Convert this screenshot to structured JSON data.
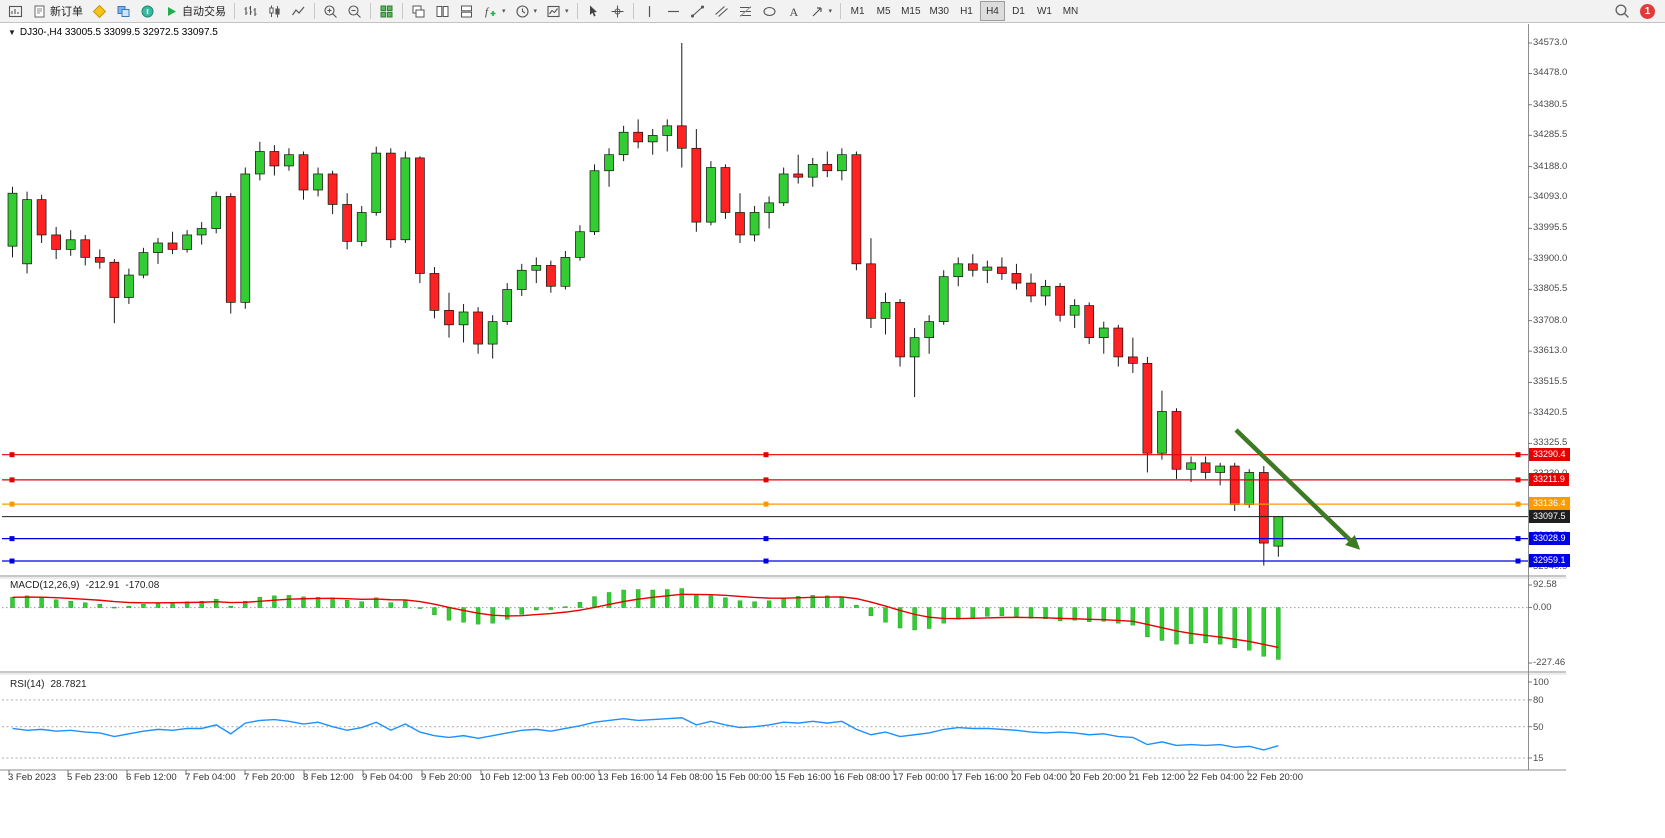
{
  "icons": {
    "dropdown_caret": "▾",
    "collapse_arrow": "▼"
  },
  "toolbar": {
    "new_order_label": "新订单",
    "autotrading_label": "自动交易",
    "timeframes": [
      "M1",
      "M5",
      "M15",
      "M30",
      "H1",
      "H4",
      "D1",
      "W1",
      "MN"
    ],
    "active_timeframe": "H4",
    "notification_count": "1"
  },
  "chart": {
    "title_line": "DJ30-,H4 33005.5 33099.5 32972.5 33097.5",
    "price_axis_labels": [
      "34573.0",
      "34478.0",
      "34380.5",
      "34285.5",
      "34188.0",
      "34093.0",
      "33995.5",
      "33900.0",
      "33805.5",
      "33708.0",
      "33613.0",
      "33515.5",
      "33420.5",
      "33325.5",
      "33230.0",
      "33132.5",
      "33037.0",
      "32940.5"
    ],
    "time_axis_labels": [
      "3 Feb 2023",
      "5 Feb 23:00",
      "6 Feb 12:00",
      "7 Feb 04:00",
      "7 Feb 20:00",
      "8 Feb 12:00",
      "9 Feb 04:00",
      "9 Feb 20:00",
      "10 Feb 12:00",
      "13 Feb 00:00",
      "13 Feb 16:00",
      "14 Feb 08:00",
      "15 Feb 00:00",
      "15 Feb 16:00",
      "16 Feb 08:00",
      "17 Feb 00:00",
      "17 Feb 16:00",
      "20 Feb 04:00",
      "20 Feb 20:00",
      "21 Feb 12:00",
      "22 Feb 04:00",
      "22 Feb 20:00"
    ]
  },
  "chart_data": {
    "type": "candlestick",
    "symbol": "DJ30-",
    "timeframe": "H4",
    "current_bar": {
      "open": 33005.5,
      "high": 33099.5,
      "low": 32972.5,
      "close": 33097.5
    },
    "y_range": [
      32940.5,
      34573.0
    ],
    "colors": {
      "up": "#33cc33",
      "down": "#ff2222",
      "wick": "#1a1a1a"
    },
    "candles": [
      [
        33940,
        34125,
        33905,
        34105
      ],
      [
        33885,
        34110,
        33855,
        34085
      ],
      [
        34085,
        34100,
        33950,
        33975
      ],
      [
        33975,
        34000,
        33900,
        33930
      ],
      [
        33930,
        33990,
        33910,
        33960
      ],
      [
        33960,
        33975,
        33880,
        33905
      ],
      [
        33905,
        33930,
        33870,
        33890
      ],
      [
        33890,
        33900,
        33700,
        33780
      ],
      [
        33780,
        33870,
        33760,
        33850
      ],
      [
        33850,
        33935,
        33840,
        33920
      ],
      [
        33920,
        33965,
        33885,
        33950
      ],
      [
        33950,
        33985,
        33915,
        33930
      ],
      [
        33930,
        33990,
        33920,
        33975
      ],
      [
        33975,
        34015,
        33945,
        33995
      ],
      [
        33995,
        34110,
        33980,
        34095
      ],
      [
        34095,
        34105,
        33730,
        33765
      ],
      [
        33765,
        34185,
        33745,
        34165
      ],
      [
        34165,
        34265,
        34145,
        34235
      ],
      [
        34235,
        34255,
        34160,
        34190
      ],
      [
        34190,
        34245,
        34175,
        34225
      ],
      [
        34225,
        34235,
        34085,
        34115
      ],
      [
        34115,
        34185,
        34095,
        34165
      ],
      [
        34165,
        34175,
        34040,
        34070
      ],
      [
        34070,
        34105,
        33930,
        33955
      ],
      [
        33955,
        34065,
        33940,
        34045
      ],
      [
        34045,
        34250,
        34035,
        34230
      ],
      [
        34230,
        34245,
        33935,
        33960
      ],
      [
        33960,
        34235,
        33950,
        34215
      ],
      [
        34215,
        34220,
        33825,
        33855
      ],
      [
        33855,
        33875,
        33715,
        33740
      ],
      [
        33740,
        33795,
        33655,
        33695
      ],
      [
        33695,
        33760,
        33640,
        33735
      ],
      [
        33735,
        33750,
        33605,
        33635
      ],
      [
        33635,
        33725,
        33590,
        33705
      ],
      [
        33705,
        33825,
        33695,
        33805
      ],
      [
        33805,
        33885,
        33785,
        33865
      ],
      [
        33865,
        33905,
        33825,
        33880
      ],
      [
        33880,
        33895,
        33795,
        33815
      ],
      [
        33815,
        33925,
        33805,
        33905
      ],
      [
        33905,
        34005,
        33895,
        33985
      ],
      [
        33985,
        34195,
        33975,
        34175
      ],
      [
        34175,
        34245,
        34125,
        34225
      ],
      [
        34225,
        34315,
        34205,
        34295
      ],
      [
        34295,
        34335,
        34245,
        34265
      ],
      [
        34265,
        34305,
        34225,
        34285
      ],
      [
        34285,
        34335,
        34235,
        34315
      ],
      [
        34315,
        34573,
        34185,
        34245
      ],
      [
        34245,
        34305,
        33985,
        34015
      ],
      [
        34015,
        34205,
        34005,
        34185
      ],
      [
        34185,
        34195,
        34025,
        34045
      ],
      [
        34045,
        34105,
        33950,
        33975
      ],
      [
        33975,
        34065,
        33955,
        34045
      ],
      [
        34045,
        34095,
        33995,
        34075
      ],
      [
        34075,
        34185,
        34065,
        34165
      ],
      [
        34165,
        34225,
        34135,
        34155
      ],
      [
        34155,
        34215,
        34125,
        34195
      ],
      [
        34195,
        34235,
        34155,
        34175
      ],
      [
        34175,
        34245,
        34145,
        34225
      ],
      [
        34225,
        34235,
        33865,
        33885
      ],
      [
        33885,
        33965,
        33685,
        33715
      ],
      [
        33715,
        33795,
        33665,
        33765
      ],
      [
        33765,
        33775,
        33565,
        33595
      ],
      [
        33595,
        33685,
        33470,
        33655
      ],
      [
        33655,
        33725,
        33605,
        33705
      ],
      [
        33705,
        33865,
        33695,
        33845
      ],
      [
        33845,
        33905,
        33815,
        33885
      ],
      [
        33885,
        33915,
        33845,
        33865
      ],
      [
        33865,
        33895,
        33825,
        33875
      ],
      [
        33875,
        33905,
        33835,
        33855
      ],
      [
        33855,
        33885,
        33805,
        33825
      ],
      [
        33825,
        33855,
        33765,
        33785
      ],
      [
        33785,
        33835,
        33755,
        33815
      ],
      [
        33815,
        33825,
        33705,
        33725
      ],
      [
        33725,
        33775,
        33685,
        33755
      ],
      [
        33755,
        33765,
        33635,
        33655
      ],
      [
        33655,
        33705,
        33605,
        33685
      ],
      [
        33685,
        33695,
        33565,
        33595
      ],
      [
        33595,
        33655,
        33545,
        33575
      ],
      [
        33575,
        33595,
        33235,
        33295
      ],
      [
        33295,
        33490,
        33275,
        33425
      ],
      [
        33425,
        33435,
        33215,
        33245
      ],
      [
        33245,
        33285,
        33205,
        33265
      ],
      [
        33265,
        33285,
        33215,
        33235
      ],
      [
        33235,
        33265,
        33195,
        33255
      ],
      [
        33255,
        33265,
        33115,
        33135
      ],
      [
        33135,
        33245,
        33125,
        33235
      ],
      [
        33235,
        33255,
        32945,
        33015
      ],
      [
        33005.5,
        33099.5,
        32972.5,
        33097.5
      ]
    ],
    "levels": [
      {
        "price": 33290.4,
        "label": "33290.4",
        "color": "#e60000",
        "kind": "hline"
      },
      {
        "price": 33211.9,
        "label": "33211.9",
        "color": "#e60000",
        "kind": "hline"
      },
      {
        "price": 33136.4,
        "label": "33136.4",
        "color": "#ff9900",
        "kind": "hline"
      },
      {
        "price": 33097.5,
        "label": "33097.5",
        "color": "#1f1f1f",
        "kind": "current-price"
      },
      {
        "price": 33028.9,
        "label": "33028.9",
        "color": "#0000e6",
        "kind": "hline"
      },
      {
        "price": 32959.1,
        "label": "32959.1",
        "color": "#0000e6",
        "kind": "hline"
      }
    ],
    "annotation_arrow": {
      "from": [
        1236,
        430
      ],
      "to": [
        1350,
        540
      ],
      "color": "#3d7a23"
    },
    "indicators": {
      "macd": {
        "label": "MACD(12,26,9)",
        "value_main": "-212.91",
        "value_signal": "-170.08",
        "axis_labels": [
          "92.58",
          "0.00",
          "-227.46"
        ],
        "y_range": [
          -227.46,
          92.58
        ],
        "histogram": [
          42,
          48,
          40,
          32,
          26,
          20,
          14,
          2,
          6,
          14,
          20,
          22,
          24,
          26,
          34,
          6,
          26,
          42,
          48,
          50,
          44,
          42,
          40,
          30,
          24,
          40,
          20,
          28,
          -2,
          -30,
          -52,
          -60,
          -68,
          -64,
          -48,
          -28,
          -10,
          -8,
          4,
          22,
          45,
          62,
          72,
          74,
          72,
          74,
          78,
          52,
          48,
          40,
          28,
          24,
          28,
          38,
          46,
          50,
          48,
          44,
          10,
          -34,
          -60,
          -84,
          -92,
          -86,
          -64,
          -48,
          -40,
          -36,
          -34,
          -38,
          -44,
          -46,
          -54,
          -52,
          -58,
          -56,
          -64,
          -72,
          -120,
          -135,
          -150,
          -148,
          -145,
          -150,
          -165,
          -175,
          -200,
          -212.91
        ]
      },
      "rsi": {
        "label": "RSI(14)",
        "value": "28.7821",
        "axis_labels": [
          "100",
          "80",
          "50",
          "15"
        ],
        "levels": [
          80,
          50,
          15
        ],
        "values": [
          48,
          46,
          47,
          45,
          46,
          44,
          43,
          39,
          42,
          45,
          47,
          46,
          48,
          48,
          52,
          42,
          54,
          57,
          58,
          56,
          53,
          55,
          50,
          46,
          49,
          55,
          46,
          53,
          44,
          40,
          38,
          40,
          37,
          40,
          43,
          46,
          47,
          45,
          48,
          51,
          55,
          57,
          59,
          57,
          58,
          59,
          60,
          52,
          56,
          52,
          49,
          50,
          52,
          55,
          54,
          56,
          54,
          56,
          47,
          41,
          44,
          39,
          41,
          43,
          47,
          49,
          48,
          48,
          47,
          46,
          44,
          43,
          44,
          43,
          41,
          42,
          39,
          38,
          30,
          33,
          29,
          30,
          29,
          30,
          27,
          28,
          24,
          28.78
        ]
      }
    }
  }
}
